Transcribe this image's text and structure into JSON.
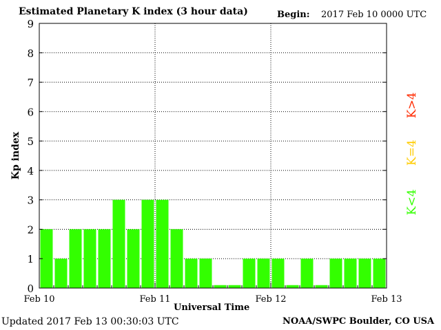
{
  "header": {
    "title": "Estimated Planetary K index (3 hour data)",
    "begin_label": "Begin:",
    "begin_value": "2017 Feb 10 0000 UTC"
  },
  "footer": {
    "updated": "Updated 2017 Feb 13 00:30:03 UTC",
    "source": "NOAA/SWPC Boulder, CO USA"
  },
  "legend": {
    "high": {
      "label": "K>4",
      "color": "#ff2a00"
    },
    "equal": {
      "label": "K=4",
      "color": "#ffcc00"
    },
    "low": {
      "label": "K<4",
      "color": "#33ff00"
    }
  },
  "chart_data": {
    "type": "bar",
    "title": "Estimated Planetary K index (3 hour data)",
    "xlabel": "Universal Time",
    "ylabel": "Kp index",
    "ylim": [
      0,
      9
    ],
    "yticks": [
      "0",
      "1",
      "2",
      "3",
      "4",
      "5",
      "6",
      "7",
      "8",
      "9"
    ],
    "xticks": [
      "Feb 10",
      "Feb 11",
      "Feb 12",
      "Feb 13"
    ],
    "grid": true,
    "bar_color": "#33ff00",
    "categories": [
      "Feb 10 00",
      "Feb 10 03",
      "Feb 10 06",
      "Feb 10 09",
      "Feb 10 12",
      "Feb 10 15",
      "Feb 10 18",
      "Feb 10 21",
      "Feb 11 00",
      "Feb 11 03",
      "Feb 11 06",
      "Feb 11 09",
      "Feb 11 12",
      "Feb 11 15",
      "Feb 11 18",
      "Feb 11 21",
      "Feb 12 00",
      "Feb 12 03",
      "Feb 12 06",
      "Feb 12 09",
      "Feb 12 12",
      "Feb 12 15",
      "Feb 12 18",
      "Feb 12 21"
    ],
    "values": [
      2,
      1,
      2,
      2,
      2,
      3,
      2,
      3,
      3,
      2,
      1,
      1,
      0.1,
      0.1,
      1,
      1,
      1,
      0.1,
      1,
      0.1,
      1,
      1,
      1,
      1
    ]
  }
}
